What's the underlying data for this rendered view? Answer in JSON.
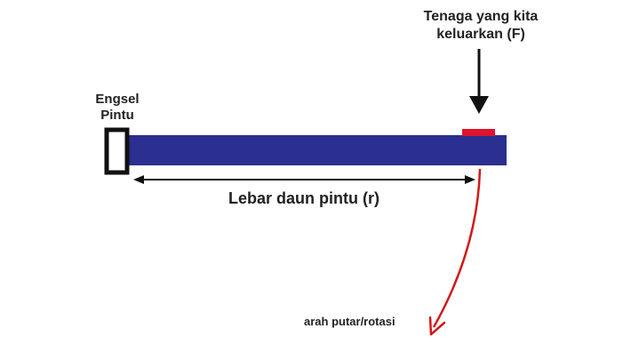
{
  "labels": {
    "force_line1": "Tenaga yang kita",
    "force_line2": "keluarkan (F)",
    "hinge_line1": "Engsel",
    "hinge_line2": "Pintu",
    "width": "Lebar daun pintu (r)",
    "rotation": "arah putar/rotasi"
  },
  "colors": {
    "door": "#2b2f8f",
    "force_pad": "#e0142c",
    "rotation_arrow": "#d11a1a",
    "outline": "#111111",
    "text": "#222222"
  }
}
